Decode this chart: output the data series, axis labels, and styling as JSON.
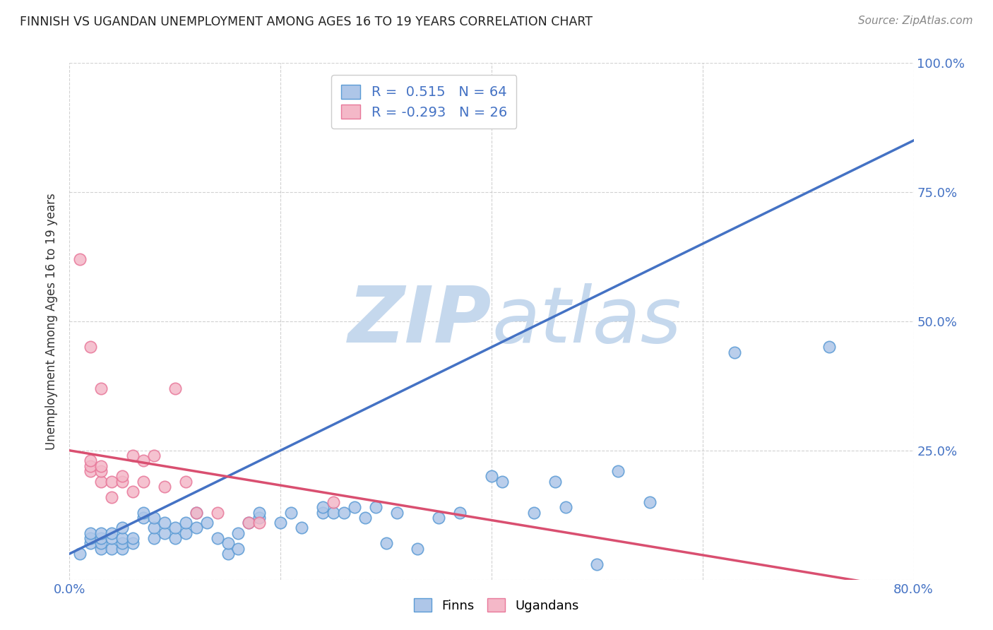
{
  "title": "FINNISH VS UGANDAN UNEMPLOYMENT AMONG AGES 16 TO 19 YEARS CORRELATION CHART",
  "source": "Source: ZipAtlas.com",
  "ylabel": "Unemployment Among Ages 16 to 19 years",
  "xlim": [
    0.0,
    0.8
  ],
  "ylim": [
    0.0,
    1.0
  ],
  "xticks": [
    0.0,
    0.2,
    0.4,
    0.6,
    0.8
  ],
  "xticklabels": [
    "0.0%",
    "",
    "",
    "",
    "80.0%"
  ],
  "yticks": [
    0.0,
    0.25,
    0.5,
    0.75,
    1.0
  ],
  "grid_color": "#cccccc",
  "background_color": "#ffffff",
  "finn_color": "#aec6e8",
  "ugandan_color": "#f4b8c8",
  "finn_edge_color": "#5b9bd5",
  "ugandan_edge_color": "#e8789a",
  "finn_line_color": "#4472c4",
  "ugandan_line_color": "#d94f70",
  "finn_R": 0.515,
  "finn_N": 64,
  "ugandan_R": -0.293,
  "ugandan_N": 26,
  "watermark_zip": "ZIP",
  "watermark_atlas": "atlas",
  "watermark_color": "#c5d8ed",
  "tick_color": "#4472c4",
  "finn_x": [
    0.01,
    0.02,
    0.02,
    0.02,
    0.03,
    0.03,
    0.03,
    0.03,
    0.04,
    0.04,
    0.04,
    0.05,
    0.05,
    0.05,
    0.05,
    0.06,
    0.06,
    0.07,
    0.07,
    0.08,
    0.08,
    0.08,
    0.09,
    0.09,
    0.1,
    0.1,
    0.11,
    0.11,
    0.12,
    0.12,
    0.13,
    0.14,
    0.15,
    0.15,
    0.16,
    0.16,
    0.17,
    0.18,
    0.18,
    0.2,
    0.21,
    0.22,
    0.24,
    0.24,
    0.25,
    0.26,
    0.27,
    0.28,
    0.29,
    0.3,
    0.31,
    0.33,
    0.35,
    0.37,
    0.4,
    0.41,
    0.44,
    0.46,
    0.47,
    0.5,
    0.52,
    0.55,
    0.63,
    0.72
  ],
  "finn_y": [
    0.05,
    0.07,
    0.08,
    0.09,
    0.06,
    0.07,
    0.08,
    0.09,
    0.06,
    0.08,
    0.09,
    0.06,
    0.07,
    0.08,
    0.1,
    0.07,
    0.08,
    0.12,
    0.13,
    0.08,
    0.1,
    0.12,
    0.09,
    0.11,
    0.08,
    0.1,
    0.09,
    0.11,
    0.1,
    0.13,
    0.11,
    0.08,
    0.05,
    0.07,
    0.06,
    0.09,
    0.11,
    0.12,
    0.13,
    0.11,
    0.13,
    0.1,
    0.13,
    0.14,
    0.13,
    0.13,
    0.14,
    0.12,
    0.14,
    0.07,
    0.13,
    0.06,
    0.12,
    0.13,
    0.2,
    0.19,
    0.13,
    0.19,
    0.14,
    0.03,
    0.21,
    0.15,
    0.44,
    0.45
  ],
  "ugandan_x": [
    0.01,
    0.02,
    0.02,
    0.02,
    0.02,
    0.03,
    0.03,
    0.03,
    0.03,
    0.04,
    0.04,
    0.05,
    0.05,
    0.06,
    0.06,
    0.07,
    0.07,
    0.08,
    0.09,
    0.1,
    0.11,
    0.12,
    0.14,
    0.17,
    0.18,
    0.25
  ],
  "ugandan_y": [
    0.62,
    0.21,
    0.22,
    0.23,
    0.45,
    0.19,
    0.21,
    0.22,
    0.37,
    0.16,
    0.19,
    0.19,
    0.2,
    0.17,
    0.24,
    0.19,
    0.23,
    0.24,
    0.18,
    0.37,
    0.19,
    0.13,
    0.13,
    0.11,
    0.11,
    0.15
  ],
  "finn_line_x": [
    0.0,
    0.8
  ],
  "finn_line_y": [
    0.05,
    0.85
  ],
  "ugandan_line_x": [
    0.0,
    0.8
  ],
  "ugandan_line_y": [
    0.25,
    -0.02
  ]
}
